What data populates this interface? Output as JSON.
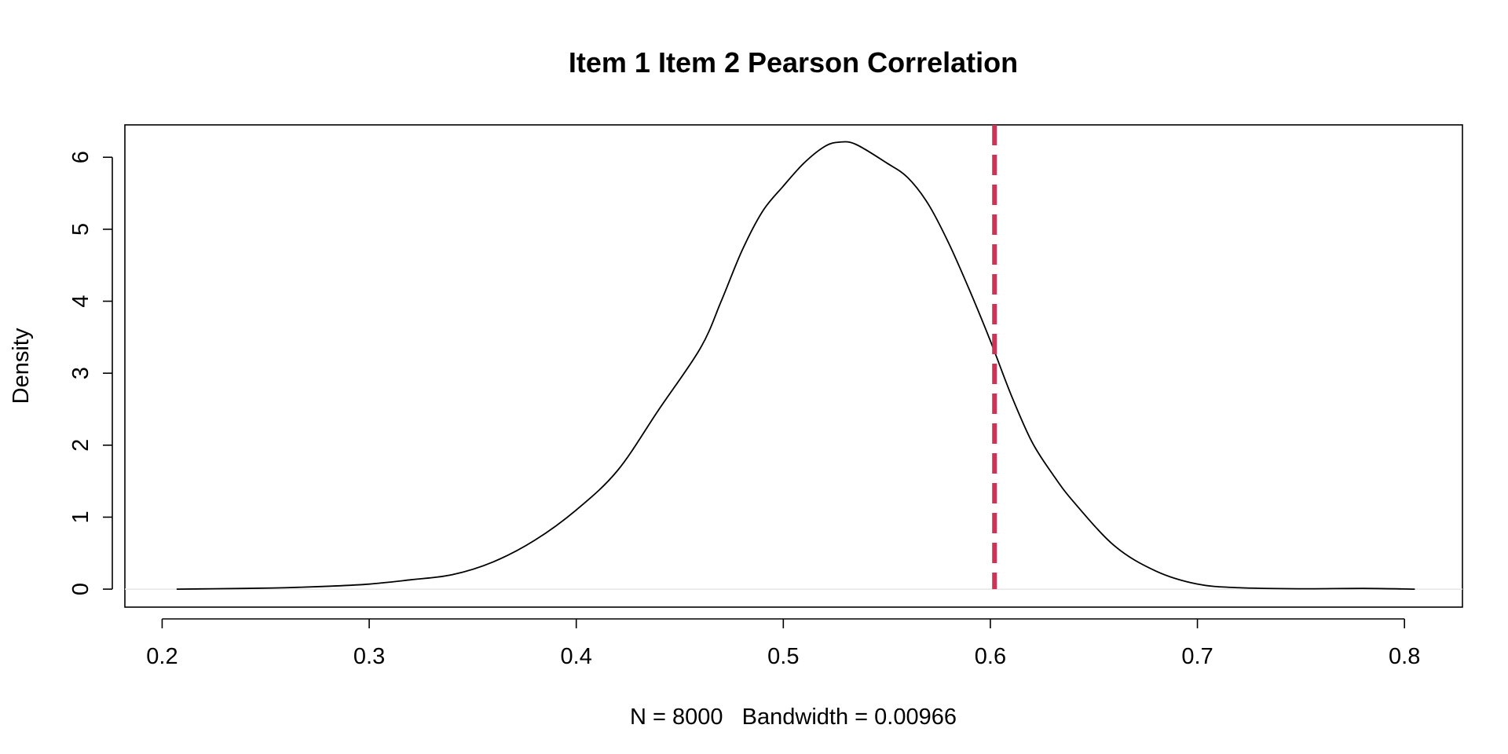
{
  "chart_data": {
    "type": "line",
    "title": "Item 1 Item 2 Pearson Correlation",
    "xlabel": "N = 8000   Bandwidth = 0.00966",
    "ylabel": "Density",
    "xlim": [
      0.182,
      0.828
    ],
    "ylim": [
      -0.25,
      6.45
    ],
    "x_ticks": [
      0.2,
      0.3,
      0.4,
      0.5,
      0.6,
      0.7,
      0.8
    ],
    "x_tick_labels": [
      "0.2",
      "0.3",
      "0.4",
      "0.5",
      "0.6",
      "0.7",
      "0.8"
    ],
    "y_ticks": [
      0,
      1,
      2,
      3,
      4,
      5,
      6
    ],
    "y_tick_labels": [
      "0",
      "1",
      "2",
      "3",
      "4",
      "5",
      "6"
    ],
    "grid": false,
    "series": [
      {
        "color": "#000000",
        "x": [
          0.207,
          0.24,
          0.26,
          0.28,
          0.3,
          0.32,
          0.34,
          0.36,
          0.38,
          0.4,
          0.42,
          0.44,
          0.46,
          0.47,
          0.48,
          0.49,
          0.5,
          0.51,
          0.52,
          0.527,
          0.535,
          0.55,
          0.56,
          0.57,
          0.58,
          0.59,
          0.6,
          0.61,
          0.62,
          0.63,
          0.64,
          0.66,
          0.68,
          0.7,
          0.72,
          0.75,
          0.78,
          0.805
        ],
        "y": [
          0.0,
          0.01,
          0.02,
          0.04,
          0.07,
          0.13,
          0.2,
          0.38,
          0.68,
          1.1,
          1.65,
          2.5,
          3.35,
          4.0,
          4.7,
          5.25,
          5.6,
          5.92,
          6.15,
          6.21,
          6.18,
          5.92,
          5.72,
          5.35,
          4.8,
          4.15,
          3.45,
          2.7,
          2.05,
          1.6,
          1.22,
          0.6,
          0.25,
          0.07,
          0.02,
          0.005,
          0.01,
          0.0
        ]
      }
    ],
    "reference_line": {
      "x": 0.602,
      "color": "#cc3355",
      "style": "dashed"
    },
    "baseline": {
      "y": 0,
      "color": "#e6e6e6"
    }
  }
}
